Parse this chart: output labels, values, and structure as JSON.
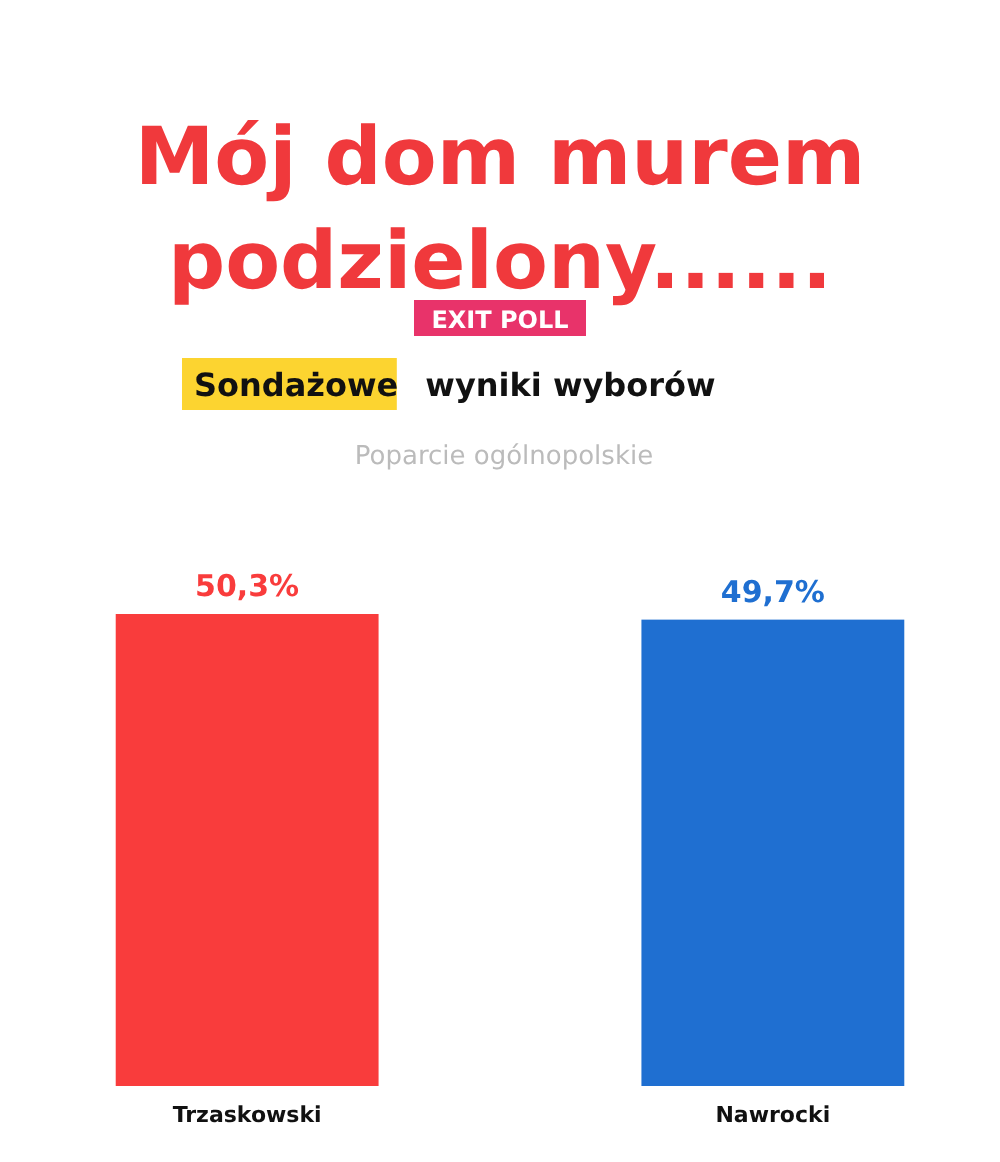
{
  "chart_data": {
    "type": "bar",
    "title": "Mój dom murem podzielony......",
    "subtitle": "Sondażowe wyniki wyborów",
    "annotations": [
      "EXIT POLL",
      "Poparcie ogólnopolskie"
    ],
    "categories": [
      "Trzaskowski",
      "Nawrocki"
    ],
    "values": [
      50.3,
      49.7
    ],
    "colors": [
      "#f93c3c",
      "#1f6fd1"
    ],
    "value_labels": [
      "50,3%",
      "49,7%"
    ]
  }
}
